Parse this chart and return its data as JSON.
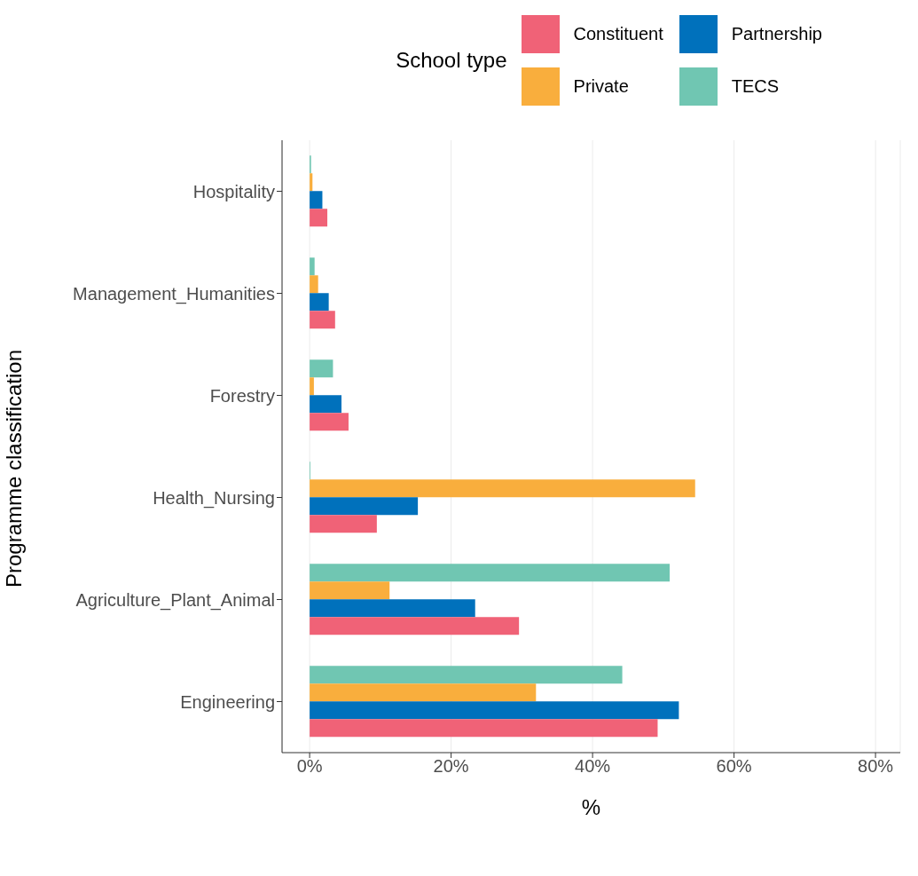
{
  "chart_data": {
    "type": "bar",
    "orientation": "horizontal",
    "ylabel": "Programme classification",
    "xlabel": "%",
    "legend_title": "School type",
    "legend": "top",
    "categories": [
      "Hospitality",
      "Management_Humanities",
      "Forestry",
      "Health_Nursing",
      "Agriculture_Plant_Animal",
      "Engineering"
    ],
    "series": [
      {
        "name": "Constituent",
        "color": "#f06277",
        "values": [
          2.5,
          3.6,
          5.5,
          9.5,
          29.6,
          49.2
        ]
      },
      {
        "name": "Partnership",
        "color": "#0071bc",
        "values": [
          1.8,
          2.7,
          4.5,
          15.3,
          23.4,
          52.2
        ]
      },
      {
        "name": "Private",
        "color": "#f9ae3d",
        "values": [
          0.4,
          1.2,
          0.6,
          54.5,
          11.3,
          32.0
        ]
      },
      {
        "name": "TECS",
        "color": "#70c6b2",
        "values": [
          0.2,
          0.7,
          3.3,
          0.1,
          50.9,
          44.2
        ]
      }
    ],
    "xlim": [
      -3.9,
      83.5
    ],
    "xticks": [
      {
        "value": 0,
        "label": "0%"
      },
      {
        "value": 20,
        "label": "20%"
      },
      {
        "value": 40,
        "label": "40%"
      },
      {
        "value": 60,
        "label": "60%"
      },
      {
        "value": 80,
        "label": "80%"
      }
    ],
    "grid": "x"
  }
}
